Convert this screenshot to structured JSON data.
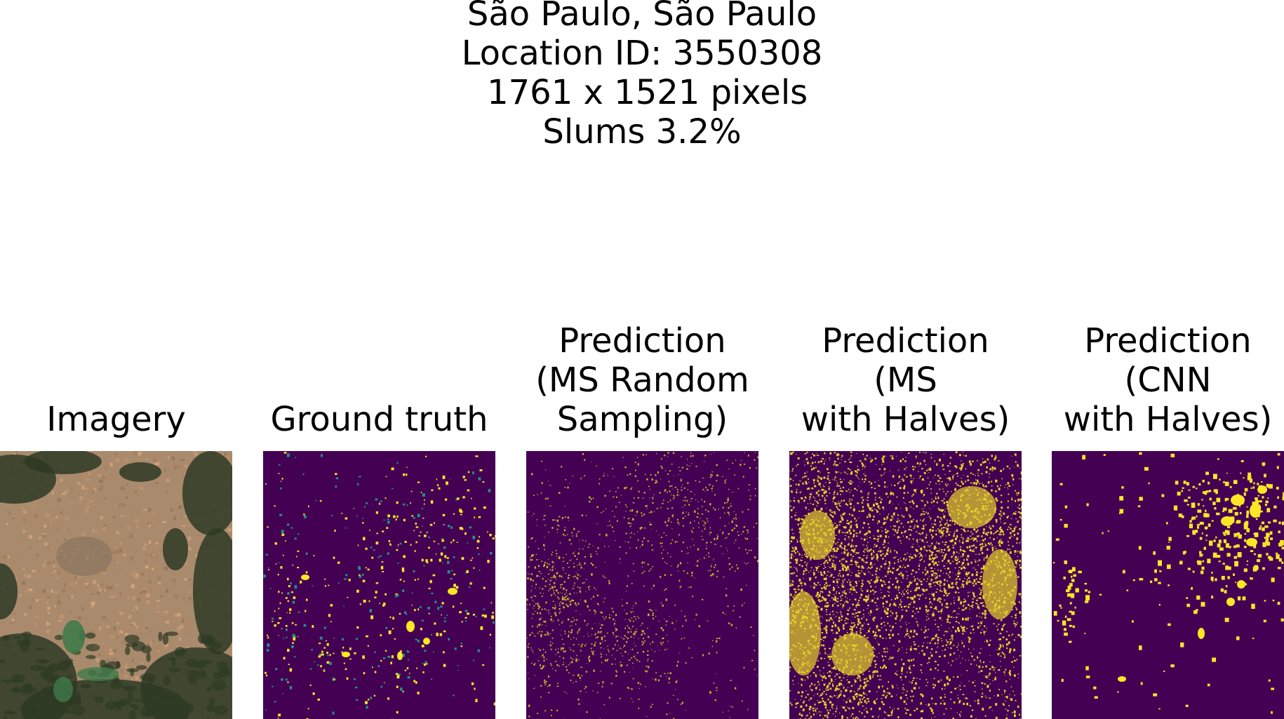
{
  "figure": {
    "suptitle_lines": [
      "São Paulo, São Paulo",
      "Location ID: 3550308",
      " 1761 x 1521 pixels",
      "Slums 3.2%"
    ]
  },
  "panels": [
    {
      "title_lines": [
        "Imagery"
      ],
      "content": "satellite-imagery",
      "colors": {
        "base": "#a98a6c",
        "vegetation": "#2e3a24",
        "water": "#3f7a4a"
      }
    },
    {
      "title_lines": [
        "Ground truth"
      ],
      "content": "slum-mask",
      "colors": {
        "background": "#440154",
        "slum": "#fde725",
        "partial": "#21918c"
      }
    },
    {
      "title_lines": [
        "Prediction",
        "(MS Random",
        "Sampling)"
      ],
      "content": "prediction-mask",
      "colors": {
        "background": "#440154",
        "slum": "#c8b62e"
      }
    },
    {
      "title_lines": [
        "Prediction",
        "(MS",
        "with Halves)"
      ],
      "content": "prediction-mask",
      "colors": {
        "background": "#440154",
        "slum": "#e6d22a"
      }
    },
    {
      "title_lines": [
        "Prediction",
        "(CNN",
        "with Halves)"
      ],
      "content": "prediction-mask",
      "colors": {
        "background": "#440154",
        "slum": "#fde725"
      }
    }
  ]
}
